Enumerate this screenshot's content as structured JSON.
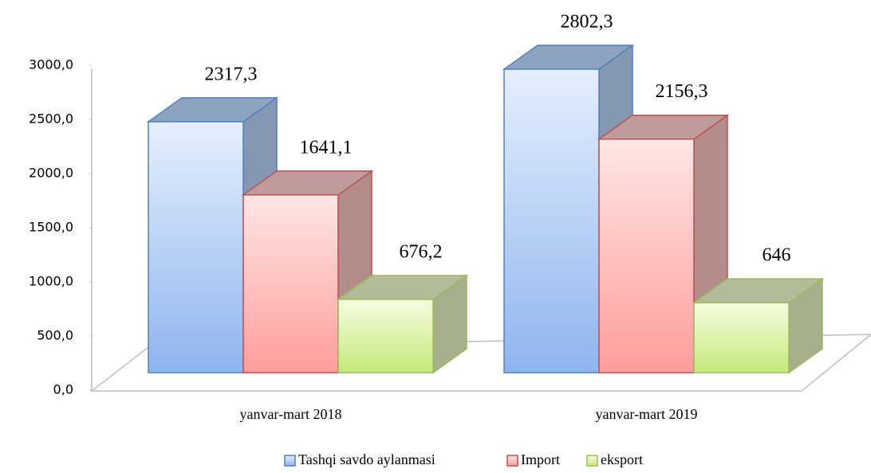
{
  "chart_data": {
    "type": "bar3d",
    "categories": [
      "yanvar-mart 2018",
      "yanvar-mart 2019"
    ],
    "series": [
      {
        "name": "Tashqi savdo aylanmasi",
        "color": "#4f81bd",
        "values": [
          2317.3,
          2802.3
        ],
        "value_labels": [
          "2317,3",
          "2802,3"
        ]
      },
      {
        "name": "Import",
        "color": "#c0504d",
        "values": [
          1641.1,
          2156.3
        ],
        "value_labels": [
          "1641,1",
          "2156,3"
        ]
      },
      {
        "name": "eksport",
        "color": "#9bbb59",
        "values": [
          676.2,
          646
        ],
        "value_labels": [
          "676,2",
          "646"
        ]
      }
    ],
    "ylim": [
      0,
      3000
    ],
    "yticks": [
      {
        "value": 0,
        "label": "0,0"
      },
      {
        "value": 500,
        "label": "500,0"
      },
      {
        "value": 1000,
        "label": "1000,0"
      },
      {
        "value": 1500,
        "label": "1500,0"
      },
      {
        "value": 2000,
        "label": "2000,0"
      },
      {
        "value": 2500,
        "label": "2500,0"
      },
      {
        "value": 3000,
        "label": "3000,0"
      }
    ],
    "legend": "bottom"
  }
}
